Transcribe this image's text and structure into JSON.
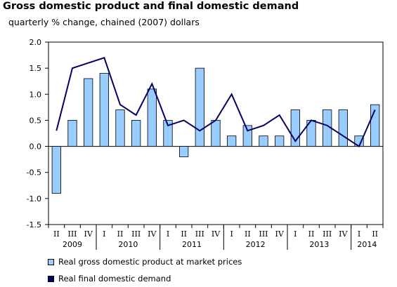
{
  "chart_data": {
    "type": "bar",
    "title": "Gross domestic product and final domestic demand",
    "subtitle": "quarterly % change, chained (2007) dollars",
    "categories": [
      "II",
      "III",
      "IV",
      "I",
      "II",
      "III",
      "IV",
      "I",
      "II",
      "III",
      "IV",
      "I",
      "II",
      "III",
      "IV",
      "I",
      "II",
      "III",
      "IV",
      "I",
      "II"
    ],
    "years": [
      {
        "label": "2009",
        "start": 0,
        "end": 2
      },
      {
        "label": "2010",
        "start": 3,
        "end": 6
      },
      {
        "label": "2011",
        "start": 7,
        "end": 10
      },
      {
        "label": "2012",
        "start": 11,
        "end": 14
      },
      {
        "label": "2013",
        "start": 15,
        "end": 18
      },
      {
        "label": "2014",
        "start": 19,
        "end": 20
      }
    ],
    "series": [
      {
        "name": "Real gross domestic product at market prices",
        "kind": "bar",
        "color": "#99CCFF",
        "values": [
          -0.9,
          0.5,
          1.3,
          1.4,
          0.7,
          0.5,
          1.1,
          0.5,
          -0.2,
          1.5,
          0.5,
          0.2,
          0.4,
          0.2,
          0.2,
          0.7,
          0.5,
          0.7,
          0.7,
          0.2,
          0.8
        ]
      },
      {
        "name": "Real final domestic demand",
        "kind": "line",
        "color": "#000066",
        "values": [
          0.3,
          1.5,
          1.6,
          1.7,
          0.8,
          0.6,
          1.2,
          0.4,
          0.5,
          0.3,
          0.5,
          1.0,
          0.3,
          0.4,
          0.6,
          0.1,
          0.5,
          0.4,
          0.2,
          0.0,
          0.7
        ]
      }
    ],
    "ylim": [
      -1.5,
      2.0
    ],
    "yticks": [
      "-1.5",
      "-1.0",
      "-0.5",
      "0.0",
      "0.5",
      "1.0",
      "1.5",
      "2.0"
    ],
    "grid": false,
    "legend_position": "bottom"
  }
}
